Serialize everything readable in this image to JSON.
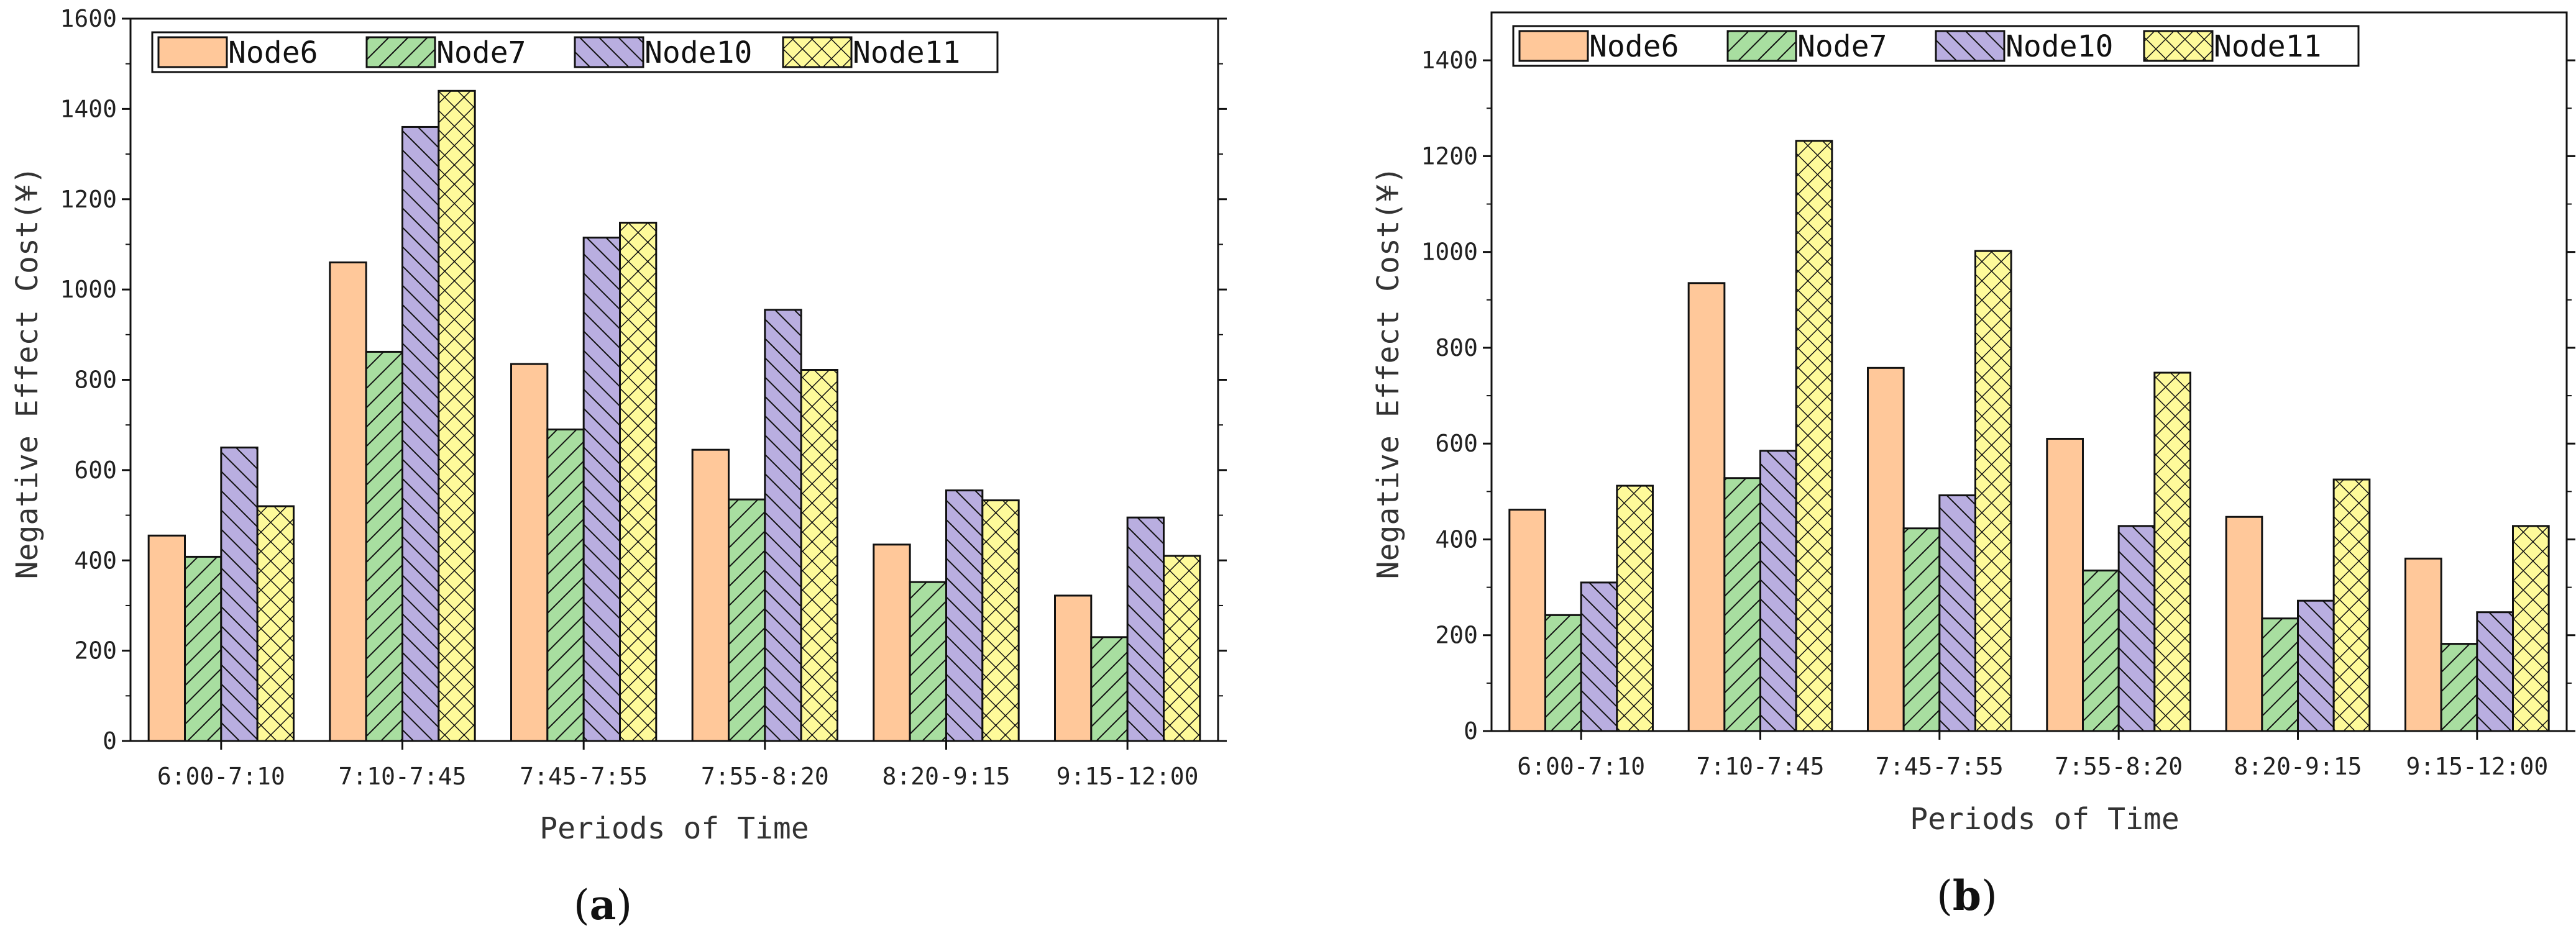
{
  "legend": [
    "Node6",
    "Node7",
    "Node10",
    "Node11"
  ],
  "series_styles": [
    {
      "name": "Node6",
      "fill": "#ffc89a",
      "hatch": "none"
    },
    {
      "name": "Node7",
      "fill": "#a8dea0",
      "hatch": "diag-fwd"
    },
    {
      "name": "Node10",
      "fill": "#b9aee0",
      "hatch": "diag-back"
    },
    {
      "name": "Node11",
      "fill": "#fefa9a",
      "hatch": "cross"
    }
  ],
  "chart_data": [
    {
      "panel": "(a)",
      "type": "bar",
      "title": "",
      "xlabel": "Periods of Time",
      "ylabel": "Negative Effect Cost(¥)",
      "ylim": [
        0,
        1600
      ],
      "yticks": [
        0,
        200,
        400,
        600,
        800,
        1000,
        1200,
        1400,
        1600
      ],
      "categories": [
        "6:00-7:10",
        "7:10-7:45",
        "7:45-7:55",
        "7:55-8:20",
        "8:20-9:15",
        "9:15-12:00"
      ],
      "series": [
        {
          "name": "Node6",
          "values": [
            455,
            1060,
            835,
            645,
            435,
            322
          ]
        },
        {
          "name": "Node7",
          "values": [
            408,
            862,
            690,
            535,
            352,
            230
          ]
        },
        {
          "name": "Node10",
          "values": [
            650,
            1360,
            1115,
            955,
            555,
            495
          ]
        },
        {
          "name": "Node11",
          "values": [
            520,
            1440,
            1148,
            822,
            533,
            410
          ]
        }
      ],
      "legend_position": "top-left"
    },
    {
      "panel": "(b)",
      "type": "bar",
      "title": "",
      "xlabel": "Periods of Time",
      "ylabel": "Negative Effect Cost(¥)",
      "ylim": [
        0,
        1500
      ],
      "yticks": [
        0,
        200,
        400,
        600,
        800,
        1000,
        1200,
        1400
      ],
      "categories": [
        "6:00-7:10",
        "7:10-7:45",
        "7:45-7:55",
        "7:55-8:20",
        "8:20-9:15",
        "9:15-12:00"
      ],
      "series": [
        {
          "name": "Node6",
          "values": [
            462,
            935,
            758,
            610,
            447,
            360
          ]
        },
        {
          "name": "Node7",
          "values": [
            242,
            528,
            423,
            335,
            235,
            182
          ]
        },
        {
          "name": "Node10",
          "values": [
            310,
            585,
            492,
            428,
            272,
            248
          ]
        },
        {
          "name": "Node11",
          "values": [
            512,
            1232,
            1002,
            748,
            525,
            428
          ]
        }
      ],
      "legend_position": "top-left"
    }
  ]
}
